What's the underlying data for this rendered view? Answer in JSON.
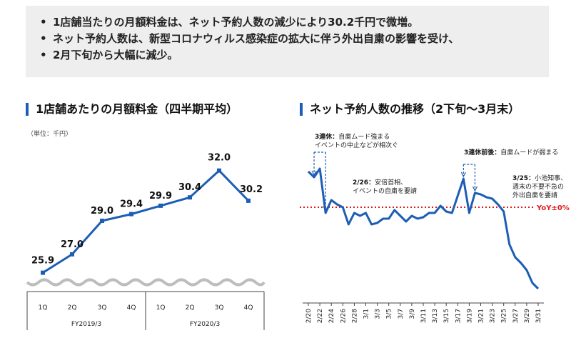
{
  "summary": {
    "items": [
      "1店舗当たりの月額料金は、ネット予約人数の減少により30.2千円で微増。",
      "ネット予約人数は、新型コロナウィルス感染症の拡大に伴う外出自粛の影響を受け、",
      "2月下旬から大幅に減少。"
    ]
  },
  "colors": {
    "line": "#1d5eb5",
    "accent": "#1d5eb5",
    "yoy": "#e01b1b",
    "panel": "#eeeeee"
  },
  "chart_data": [
    {
      "type": "line",
      "title": "1店舗あたりの月額料金（四半期平均）",
      "unit_label": "（単位：千円）",
      "categories": [
        "1Q",
        "2Q",
        "3Q",
        "4Q",
        "1Q",
        "2Q",
        "3Q",
        "4Q"
      ],
      "groups": [
        {
          "label": "FY2019/3",
          "categories": [
            "1Q",
            "2Q",
            "3Q",
            "4Q"
          ]
        },
        {
          "label": "FY2020/3",
          "categories": [
            "1Q",
            "2Q",
            "3Q",
            "4Q"
          ]
        }
      ],
      "values": [
        25.9,
        27.0,
        29.0,
        29.4,
        29.9,
        30.4,
        32.0,
        30.2
      ],
      "data_labels": [
        "25.9",
        "27.0",
        "29.0",
        "29.4",
        "29.9",
        "30.4",
        "32.0",
        "30.2"
      ],
      "ylim": [
        25.5,
        32.5
      ],
      "grid": false
    },
    {
      "type": "line",
      "title": "ネット予約人数の推移（2下旬〜3月末）",
      "x_tick_labels": [
        "2/20",
        "2/22",
        "2/24",
        "2/26",
        "2/28",
        "3/1",
        "3/3",
        "3/5",
        "3/7",
        "3/9",
        "3/11",
        "3/13",
        "3/15",
        "3/17",
        "3/19",
        "3/21",
        "3/23",
        "3/25",
        "3/27",
        "3/29",
        "3/31"
      ],
      "x_start": "2020-02-20",
      "x_end": "2020-03-31",
      "values": [
        1.25,
        1.21,
        1.27,
        0.96,
        1.05,
        1.02,
        1.0,
        0.88,
        0.96,
        0.94,
        0.96,
        0.88,
        0.89,
        0.92,
        0.92,
        0.98,
        0.94,
        0.9,
        0.94,
        0.92,
        0.93,
        0.96,
        0.96,
        1.01,
        0.97,
        0.96,
        1.08,
        1.2,
        0.96,
        1.1,
        1.09,
        1.07,
        1.06,
        1.02,
        0.97,
        0.74,
        0.65,
        0.61,
        0.56,
        0.47,
        0.43
      ],
      "reference_line": {
        "label": "YoY±0%",
        "value": 1.0
      },
      "annotations": [
        {
          "bold": "3連休：",
          "lines": [
            "自粛ムード強まる",
            "イベントの中止などが相次ぐ"
          ]
        },
        {
          "bold": "2/26：",
          "lines": [
            "安倍首相、",
            "イベントの自粛を要請"
          ]
        },
        {
          "bold": "3連休前後：",
          "lines": [
            "自粛ムードが弱まる"
          ]
        },
        {
          "bold": "3/25：",
          "lines": [
            "小池知事、",
            "週末の不要不急の",
            "外出自粛を要請"
          ]
        }
      ],
      "grid": false
    }
  ]
}
